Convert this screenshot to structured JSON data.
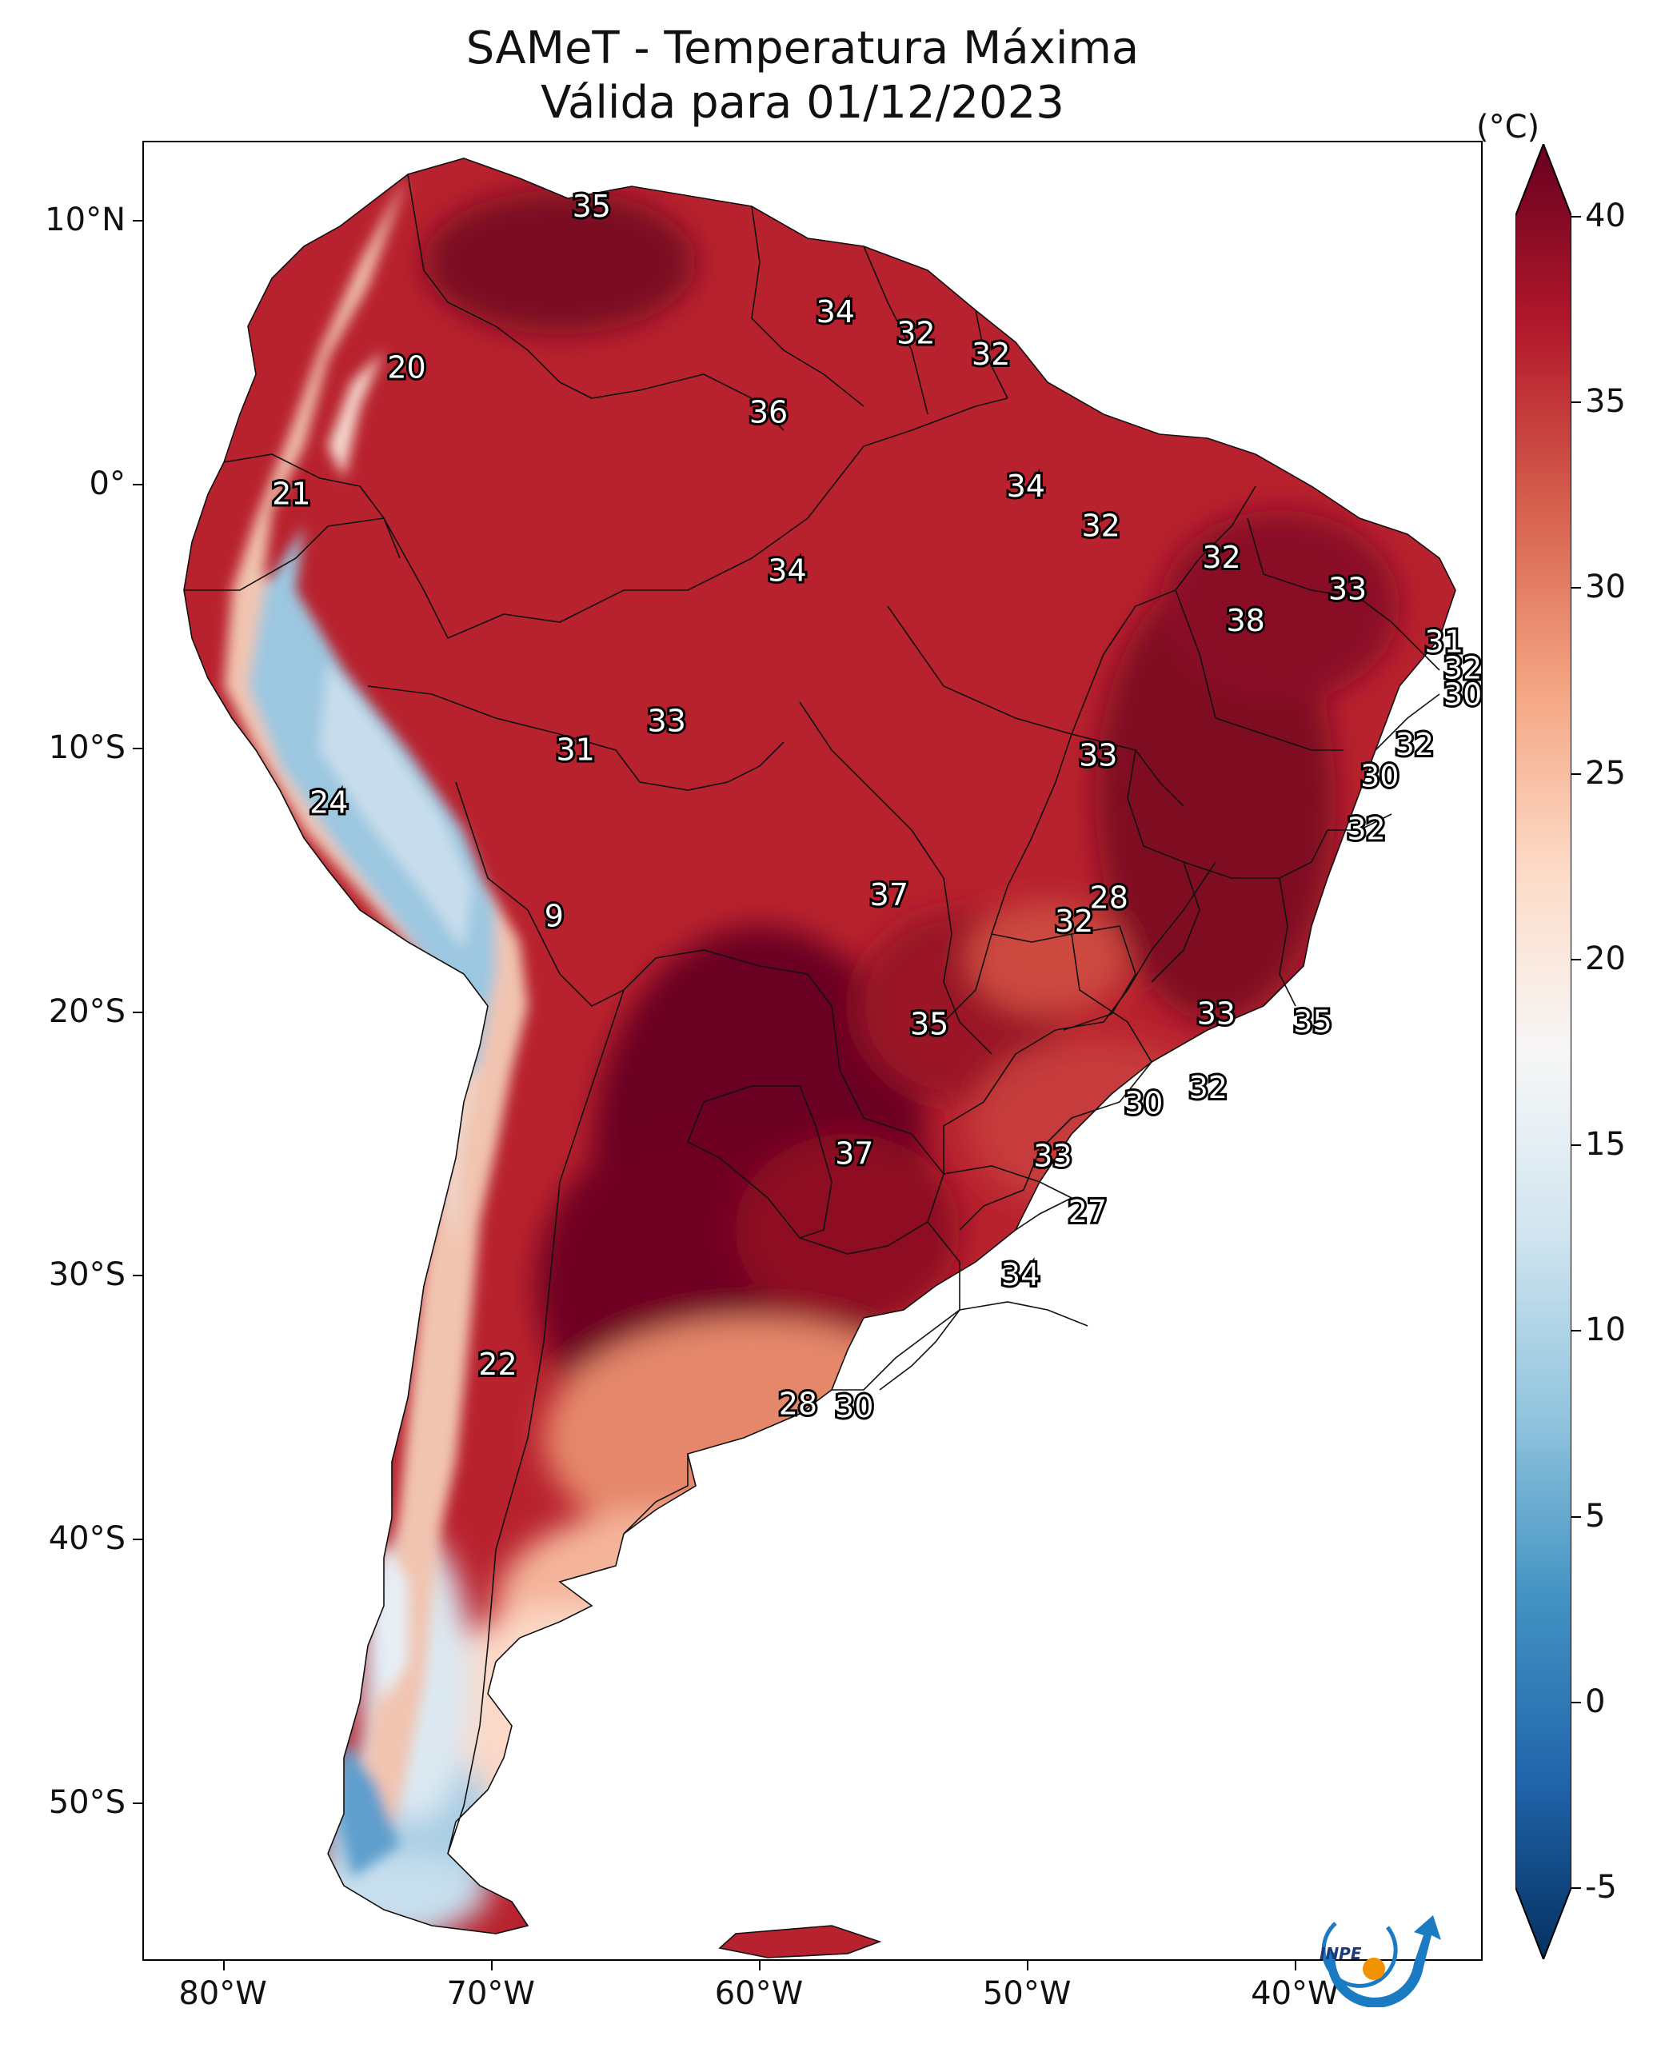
{
  "title": {
    "line1": "SAMeT - Temperatura Máxima",
    "line2": "Válida para 01/12/2023"
  },
  "map": {
    "lat_labels": [
      "10°N",
      "0°",
      "10°S",
      "20°S",
      "30°S",
      "40°S",
      "50°S"
    ],
    "lon_labels": [
      "80°W",
      "70°W",
      "60°W",
      "50°W",
      "40°W"
    ],
    "extent": {
      "lon_min": -83,
      "lon_max": -33,
      "lat_min": -56,
      "lat_max": 13
    },
    "point_labels": [
      {
        "text": "35",
        "lon": -66.3,
        "lat": 10.6
      },
      {
        "text": "34",
        "lon": -57.2,
        "lat": 6.6
      },
      {
        "text": "32",
        "lon": -54.2,
        "lat": 5.8
      },
      {
        "text": "32",
        "lon": -51.4,
        "lat": 5.0
      },
      {
        "text": "20",
        "lon": -73.2,
        "lat": 4.5
      },
      {
        "text": "36",
        "lon": -59.7,
        "lat": 2.8
      },
      {
        "text": "34",
        "lon": -50.1,
        "lat": 0.0
      },
      {
        "text": "21",
        "lon": -77.5,
        "lat": -0.3
      },
      {
        "text": "32",
        "lon": -47.3,
        "lat": -1.5
      },
      {
        "text": "32",
        "lon": -42.8,
        "lat": -2.7
      },
      {
        "text": "34",
        "lon": -59.0,
        "lat": -3.2
      },
      {
        "text": "33",
        "lon": -38.1,
        "lat": -3.9
      },
      {
        "text": "38",
        "lon": -41.9,
        "lat": -5.1
      },
      {
        "text": "31",
        "lon": -34.5,
        "lat": -5.9
      },
      {
        "text": "32",
        "lon": -33.8,
        "lat": -6.9
      },
      {
        "text": "30",
        "lon": -33.8,
        "lat": -7.9
      },
      {
        "text": "33",
        "lon": -63.5,
        "lat": -8.9
      },
      {
        "text": "31",
        "lon": -66.9,
        "lat": -10.0
      },
      {
        "text": "32",
        "lon": -35.6,
        "lat": -9.8
      },
      {
        "text": "33",
        "lon": -47.4,
        "lat": -10.2
      },
      {
        "text": "30",
        "lon": -36.9,
        "lat": -11.0
      },
      {
        "text": "24",
        "lon": -76.1,
        "lat": -12.0
      },
      {
        "text": "32",
        "lon": -37.4,
        "lat": -13.0
      },
      {
        "text": "37",
        "lon": -55.2,
        "lat": -15.5
      },
      {
        "text": "28",
        "lon": -47.0,
        "lat": -15.6
      },
      {
        "text": "32",
        "lon": -48.3,
        "lat": -16.5
      },
      {
        "text": "9",
        "lon": -67.7,
        "lat": -16.3
      },
      {
        "text": "33",
        "lon": -43.0,
        "lat": -20.0
      },
      {
        "text": "35",
        "lon": -39.4,
        "lat": -20.3
      },
      {
        "text": "35",
        "lon": -53.7,
        "lat": -20.4
      },
      {
        "text": "32",
        "lon": -43.3,
        "lat": -22.8
      },
      {
        "text": "30",
        "lon": -45.7,
        "lat": -23.4
      },
      {
        "text": "37",
        "lon": -56.5,
        "lat": -25.3
      },
      {
        "text": "33",
        "lon": -49.1,
        "lat": -25.4
      },
      {
        "text": "27",
        "lon": -47.8,
        "lat": -27.5
      },
      {
        "text": "34",
        "lon": -50.3,
        "lat": -29.9
      },
      {
        "text": "22",
        "lon": -69.8,
        "lat": -33.3
      },
      {
        "text": "28",
        "lon": -58.6,
        "lat": -34.8
      },
      {
        "text": "30",
        "lon": -56.5,
        "lat": -34.9
      }
    ]
  },
  "colorbar": {
    "unit": "(°C)",
    "ticks": [
      "40",
      "35",
      "30",
      "25",
      "20",
      "15",
      "10",
      "5",
      "0",
      "-5"
    ],
    "min": -5,
    "max": 40,
    "colors": [
      "#053061",
      "#2166ac",
      "#4393c3",
      "#92c5de",
      "#d1e5f0",
      "#f7f7f7",
      "#fddbc7",
      "#f4a582",
      "#d6604d",
      "#b2182b",
      "#67001f"
    ]
  },
  "logo": {
    "text": "INPE"
  }
}
